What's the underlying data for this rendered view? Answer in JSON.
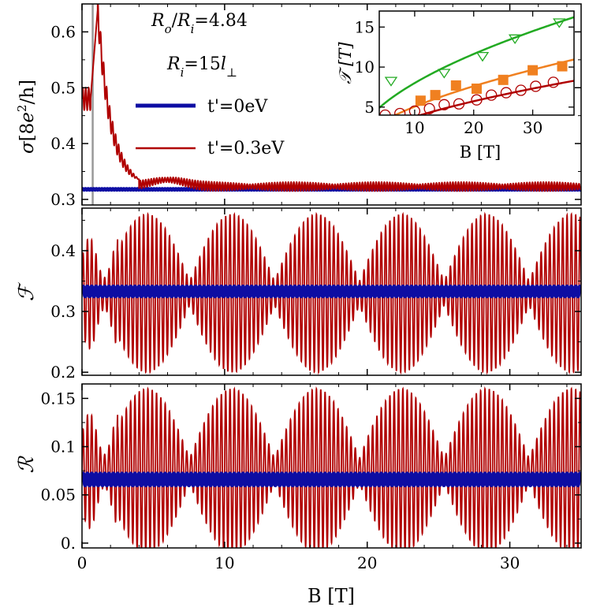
{
  "chart_data": [
    {
      "type": "line",
      "panel": "sigma",
      "ylabel_parts": [
        "σ",
        "[8",
        "e",
        "2",
        "/h]"
      ],
      "xlim": [
        0,
        35
      ],
      "ylim": [
        0.29,
        0.65
      ],
      "yticks": [
        0.3,
        0.4,
        0.5,
        0.6
      ],
      "ytick_labels": [
        "0.3",
        "0.4",
        "0.5",
        "0.6"
      ],
      "xticks": [
        0,
        10,
        20,
        30
      ],
      "annotations": {
        "ratio": "R_o/R_i=4.84",
        "ri": "R_i=15l_⊥"
      },
      "vline_x": 0.75,
      "series": [
        {
          "name": "t'=0eV",
          "color": "#0d0da3",
          "baseline": 0.318,
          "amplitude": 0.001
        },
        {
          "name": "t'=0.3eV",
          "color": "#b00000",
          "baseline": 0.323,
          "amplitude": 0.008,
          "peak": {
            "x": 1.1,
            "y": 0.64
          },
          "start_value": 0.48
        }
      ],
      "legend": [
        "t'=0eV",
        "t'=0.3eV"
      ],
      "inset": {
        "xlabel": "B [T]",
        "ylabel": "𝒯 [T]",
        "xlim": [
          4,
          37
        ],
        "ylim": [
          4,
          17
        ],
        "xticks": [
          10,
          20,
          30
        ],
        "yticks": [
          5,
          10,
          15
        ],
        "series": [
          {
            "marker": "triangle-down-open",
            "color": "#22aa22",
            "x": [
              6,
              15,
              21.5,
              27,
              34.5
            ],
            "y": [
              8.3,
              9.3,
              11.4,
              13.6,
              15.6
            ]
          },
          {
            "marker": "square-filled",
            "color": "#f08020",
            "x": [
              11,
              13.5,
              17,
              20.5,
              25,
              30,
              35
            ],
            "y": [
              5.8,
              6.5,
              7.7,
              7.3,
              8.4,
              9.6,
              10.1
            ]
          },
          {
            "marker": "circle-open",
            "color": "#b00000",
            "x": [
              5,
              7.5,
              10,
              12.5,
              15,
              17.5,
              20.5,
              23,
              25.5,
              28,
              30.5,
              33.5
            ],
            "y": [
              4.0,
              4.2,
              4.5,
              4.8,
              5.3,
              5.4,
              5.9,
              6.5,
              6.8,
              7.1,
              7.6,
              8.1
            ]
          }
        ],
        "fits": [
          {
            "color": "#22aa22",
            "coef": 2.2,
            "power": 0.55
          },
          {
            "color": "#f08020",
            "coef": 1.3,
            "power": 0.59
          },
          {
            "color": "#b00000",
            "coef": 0.95,
            "power": 0.6
          }
        ]
      }
    },
    {
      "type": "line",
      "panel": "fano",
      "ylabel": "ℱ",
      "xlim": [
        0,
        35
      ],
      "ylim": [
        0.195,
        0.47
      ],
      "yticks": [
        0.2,
        0.3,
        0.4
      ],
      "ytick_labels": [
        "0.2",
        "0.3",
        "0.4"
      ],
      "series": [
        {
          "name": "t'=0eV",
          "color": "#0d0da3",
          "baseline": 0.333,
          "amplitude": 0.008
        },
        {
          "name": "t'=0.3eV",
          "color": "#b00000",
          "center": 0.33,
          "amplitude": 0.13
        }
      ]
    },
    {
      "type": "line",
      "panel": "r",
      "ylabel": "ℛ",
      "xlabel": "B [T]",
      "xlim": [
        0,
        35
      ],
      "ylim": [
        -0.005,
        0.165
      ],
      "yticks": [
        0.0,
        0.05,
        0.1,
        0.15
      ],
      "ytick_labels": [
        "0.",
        "0.05",
        "0.1",
        "0.15"
      ],
      "xticks": [
        0,
        10,
        20,
        30
      ],
      "xtick_labels": [
        "0",
        "10",
        "20",
        "30"
      ],
      "series": [
        {
          "name": "t'=0eV",
          "color": "#0d0da3",
          "baseline": 0.066,
          "amplitude": 0.006
        },
        {
          "name": "t'=0.3eV",
          "color": "#b00000",
          "center": 0.075,
          "amplitude": 0.085
        }
      ]
    }
  ]
}
